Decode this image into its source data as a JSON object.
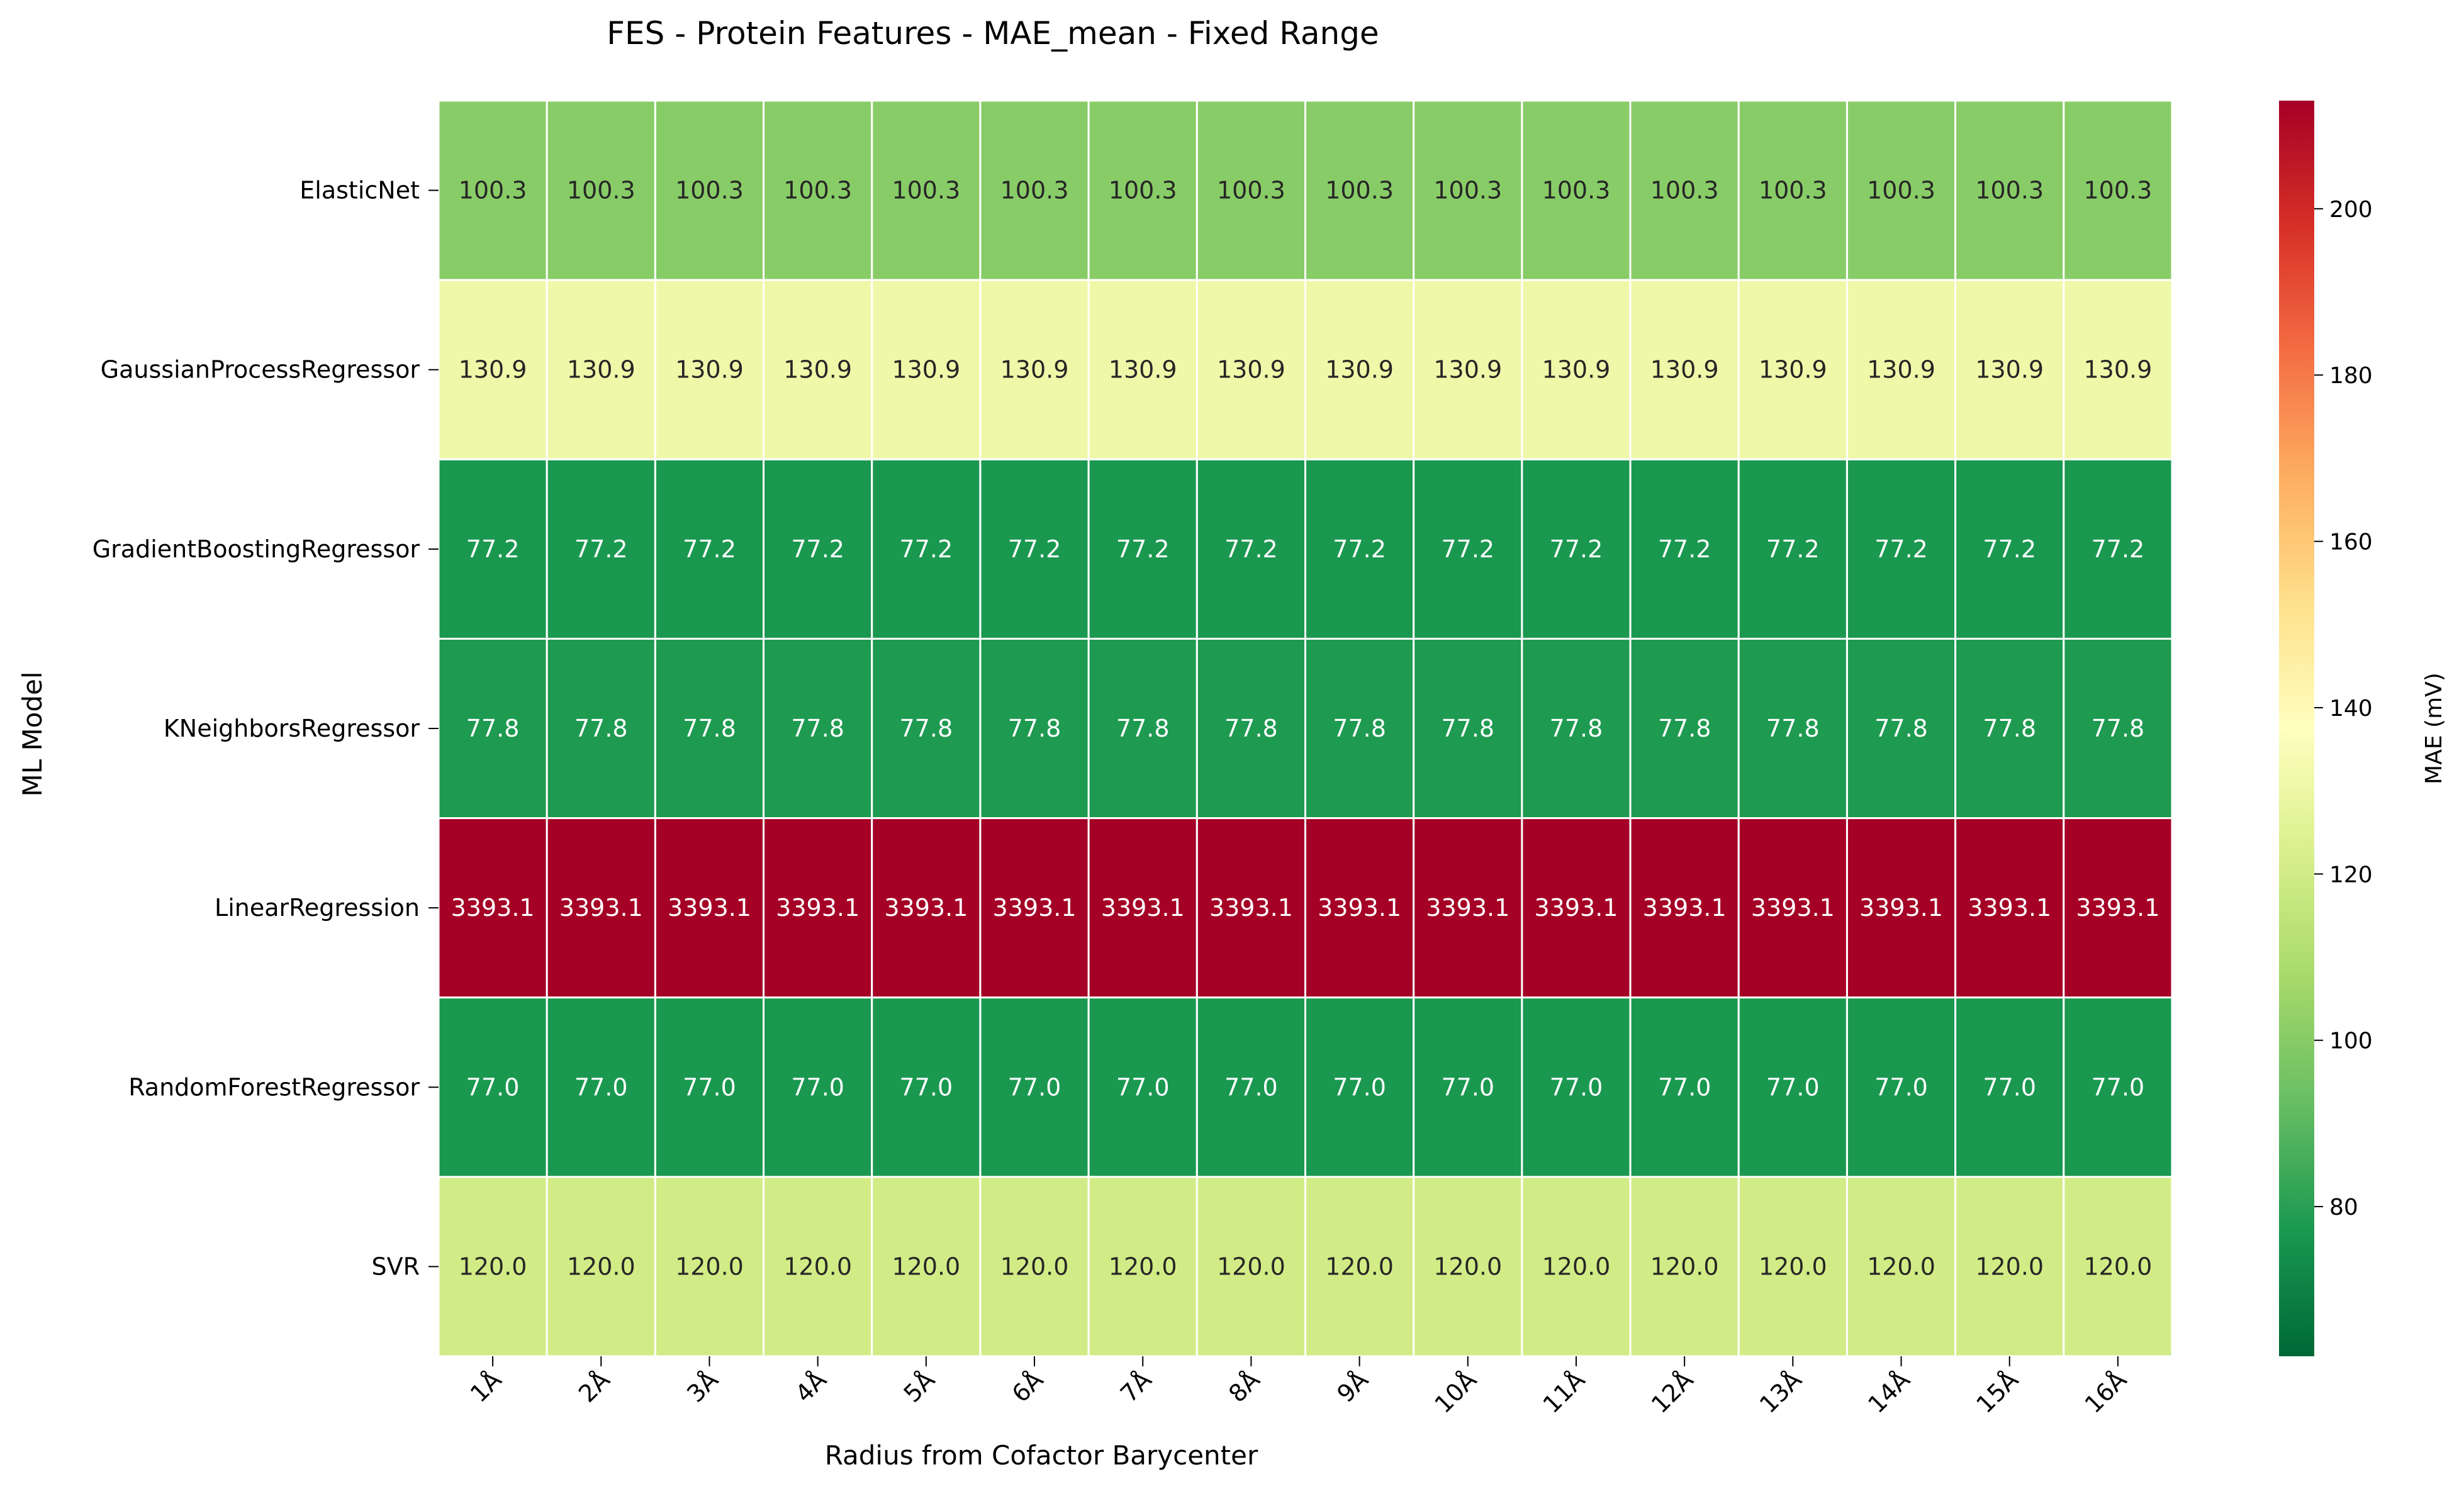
{
  "chart_data": {
    "type": "heatmap",
    "title": "FES - Protein Features - MAE_mean - Fixed Range",
    "xlabel": "Radius from Cofactor Barycenter",
    "ylabel": "ML Model",
    "x": [
      "1Å",
      "2Å",
      "3Å",
      "4Å",
      "5Å",
      "6Å",
      "7Å",
      "8Å",
      "9Å",
      "10Å",
      "11Å",
      "12Å",
      "13Å",
      "14Å",
      "15Å",
      "16Å"
    ],
    "y": [
      "ElasticNet",
      "GaussianProcessRegressor",
      "GradientBoostingRegressor",
      "KNeighborsRegressor",
      "LinearRegression",
      "RandomForestRegressor",
      "SVR"
    ],
    "row_values": [
      100.3,
      130.9,
      77.2,
      77.8,
      3393.1,
      77.0,
      120.0
    ],
    "value_format": "one decimal",
    "colormap": "RdYlGn_r",
    "color_range": [
      62,
      213
    ],
    "colorbar": {
      "label": "MAE (mV)",
      "ticks": [
        80,
        100,
        120,
        140,
        160,
        180,
        200
      ]
    },
    "grid": false,
    "colors": {
      "elasticnet_cell": "#8bcb69",
      "gaussian_cell": "#eff8a6",
      "boosting_cell": "#1a9850",
      "linear_cell": "#a50026",
      "svr_cell": "#cbe77d"
    }
  }
}
